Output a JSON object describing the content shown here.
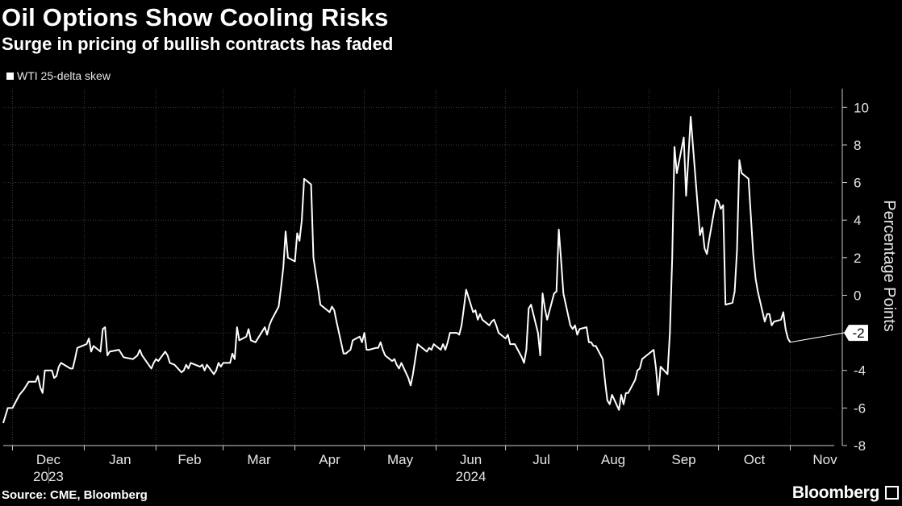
{
  "header": {
    "title": "Oil Options Show Cooling Risks",
    "subtitle": "Surge in pricing of bullish contracts has faded"
  },
  "legend": {
    "label": "WTI 25-delta skew"
  },
  "footer": {
    "source": "Source: CME, Bloomberg",
    "brand": "Bloomberg"
  },
  "colors": {
    "background": "#000000",
    "line": "#ffffff",
    "grid": "#3a3a3a"
  },
  "chart_data": {
    "type": "line",
    "title": "Oil Options Show Cooling Risks",
    "subtitle": "Surge in pricing of bullish contracts has faded",
    "ylabel": "Percentage Points",
    "xlabel": "",
    "ylim": [
      -8,
      11
    ],
    "y_ticks": [
      10,
      8,
      6,
      4,
      2,
      0,
      -2,
      -4,
      -6,
      -8
    ],
    "y_tick_labels": [
      "10",
      "8",
      "6",
      "4",
      "2",
      "0",
      "-2",
      "-4",
      "-6",
      "-8"
    ],
    "x_range": [
      "2023-11-27",
      "2024-11-20"
    ],
    "x_ticks": [
      {
        "date": "2023-12-01",
        "label": "Dec",
        "sublabel": "2023"
      },
      {
        "date": "2024-01-01",
        "label": "Jan"
      },
      {
        "date": "2024-02-01",
        "label": "Feb"
      },
      {
        "date": "2024-03-01",
        "label": "Mar"
      },
      {
        "date": "2024-04-01",
        "label": "Apr"
      },
      {
        "date": "2024-05-01",
        "label": "May"
      },
      {
        "date": "2024-06-01",
        "label": "Jun",
        "sublabel": "2024"
      },
      {
        "date": "2024-07-01",
        "label": "Jul"
      },
      {
        "date": "2024-08-01",
        "label": "Aug"
      },
      {
        "date": "2024-09-01",
        "label": "Sep"
      },
      {
        "date": "2024-10-01",
        "label": "Oct"
      },
      {
        "date": "2024-11-01",
        "label": "Nov"
      }
    ],
    "last_value_label": "-2",
    "grid": true,
    "legend_position": "top-left",
    "series": [
      {
        "name": "WTI 25-delta skew",
        "points": [
          [
            "2023-11-27",
            -6.8
          ],
          [
            "2023-11-29",
            -6.0
          ],
          [
            "2023-12-01",
            -6.0
          ],
          [
            "2023-12-04",
            -5.3
          ],
          [
            "2023-12-06",
            -5.0
          ],
          [
            "2023-12-08",
            -4.6
          ],
          [
            "2023-12-11",
            -4.6
          ],
          [
            "2023-12-12",
            -4.3
          ],
          [
            "2023-12-13",
            -4.9
          ],
          [
            "2023-12-14",
            -5.2
          ],
          [
            "2023-12-15",
            -4.0
          ],
          [
            "2023-12-18",
            -4.0
          ],
          [
            "2023-12-19",
            -4.4
          ],
          [
            "2023-12-20",
            -4.3
          ],
          [
            "2023-12-21",
            -3.8
          ],
          [
            "2023-12-22",
            -3.6
          ],
          [
            "2023-12-26",
            -3.9
          ],
          [
            "2023-12-27",
            -3.9
          ],
          [
            "2023-12-28",
            -3.4
          ],
          [
            "2023-12-29",
            -2.8
          ],
          [
            "2024-01-02",
            -2.6
          ],
          [
            "2024-01-03",
            -2.3
          ],
          [
            "2024-01-04",
            -3.0
          ],
          [
            "2024-01-05",
            -2.7
          ],
          [
            "2024-01-08",
            -3.0
          ],
          [
            "2024-01-09",
            -1.8
          ],
          [
            "2024-01-10",
            -1.7
          ],
          [
            "2024-01-11",
            -3.2
          ],
          [
            "2024-01-12",
            -3.0
          ],
          [
            "2024-01-16",
            -2.9
          ],
          [
            "2024-01-18",
            -3.3
          ],
          [
            "2024-01-22",
            -3.4
          ],
          [
            "2024-01-24",
            -3.2
          ],
          [
            "2024-01-25",
            -2.9
          ],
          [
            "2024-01-26",
            -3.2
          ],
          [
            "2024-01-30",
            -3.9
          ],
          [
            "2024-01-31",
            -3.6
          ],
          [
            "2024-02-01",
            -3.4
          ],
          [
            "2024-02-02",
            -3.5
          ],
          [
            "2024-02-05",
            -3.0
          ],
          [
            "2024-02-06",
            -3.2
          ],
          [
            "2024-02-07",
            -3.6
          ],
          [
            "2024-02-09",
            -3.7
          ],
          [
            "2024-02-12",
            -4.1
          ],
          [
            "2024-02-13",
            -4.0
          ],
          [
            "2024-02-14",
            -3.7
          ],
          [
            "2024-02-15",
            -3.9
          ],
          [
            "2024-02-16",
            -3.6
          ],
          [
            "2024-02-20",
            -3.8
          ],
          [
            "2024-02-21",
            -3.7
          ],
          [
            "2024-02-22",
            -4.0
          ],
          [
            "2024-02-23",
            -3.7
          ],
          [
            "2024-02-26",
            -4.2
          ],
          [
            "2024-02-27",
            -4.0
          ],
          [
            "2024-02-28",
            -3.6
          ],
          [
            "2024-02-29",
            -3.8
          ],
          [
            "2024-03-01",
            -3.6
          ],
          [
            "2024-03-04",
            -3.6
          ],
          [
            "2024-03-05",
            -3.1
          ],
          [
            "2024-03-06",
            -3.4
          ],
          [
            "2024-03-07",
            -1.7
          ],
          [
            "2024-03-08",
            -2.4
          ],
          [
            "2024-03-11",
            -2.2
          ],
          [
            "2024-03-12",
            -1.8
          ],
          [
            "2024-03-13",
            -2.4
          ],
          [
            "2024-03-15",
            -2.5
          ],
          [
            "2024-03-18",
            -1.9
          ],
          [
            "2024-03-19",
            -1.7
          ],
          [
            "2024-03-20",
            -2.1
          ],
          [
            "2024-03-21",
            -1.6
          ],
          [
            "2024-03-22",
            -1.3
          ],
          [
            "2024-03-25",
            -0.6
          ],
          [
            "2024-03-26",
            0.4
          ],
          [
            "2024-03-27",
            1.5
          ],
          [
            "2024-03-28",
            3.4
          ],
          [
            "2024-03-29",
            2.0
          ],
          [
            "2024-04-01",
            1.8
          ],
          [
            "2024-04-02",
            3.3
          ],
          [
            "2024-04-03",
            2.9
          ],
          [
            "2024-04-04",
            4.0
          ],
          [
            "2024-04-05",
            6.2
          ],
          [
            "2024-04-08",
            5.9
          ],
          [
            "2024-04-09",
            2.0
          ],
          [
            "2024-04-10",
            1.2
          ],
          [
            "2024-04-11",
            0.4
          ],
          [
            "2024-04-12",
            -0.5
          ],
          [
            "2024-04-15",
            -0.8
          ],
          [
            "2024-04-16",
            -0.9
          ],
          [
            "2024-04-17",
            -0.6
          ],
          [
            "2024-04-18",
            -0.8
          ],
          [
            "2024-04-19",
            -1.4
          ],
          [
            "2024-04-22",
            -3.1
          ],
          [
            "2024-04-23",
            -3.1
          ],
          [
            "2024-04-24",
            -3.0
          ],
          [
            "2024-04-25",
            -2.9
          ],
          [
            "2024-04-26",
            -2.4
          ],
          [
            "2024-04-29",
            -2.2
          ],
          [
            "2024-04-30",
            -2.5
          ],
          [
            "2024-05-01",
            -2.0
          ],
          [
            "2024-05-02",
            -2.9
          ],
          [
            "2024-05-03",
            -2.9
          ],
          [
            "2024-05-06",
            -2.8
          ],
          [
            "2024-05-07",
            -2.8
          ],
          [
            "2024-05-08",
            -2.5
          ],
          [
            "2024-05-09",
            -2.9
          ],
          [
            "2024-05-10",
            -3.2
          ],
          [
            "2024-05-13",
            -3.5
          ],
          [
            "2024-05-14",
            -3.4
          ],
          [
            "2024-05-15",
            -3.7
          ],
          [
            "2024-05-16",
            -3.9
          ],
          [
            "2024-05-17",
            -3.6
          ],
          [
            "2024-05-20",
            -4.4
          ],
          [
            "2024-05-21",
            -4.8
          ],
          [
            "2024-05-22",
            -4.2
          ],
          [
            "2024-05-23",
            -3.4
          ],
          [
            "2024-05-24",
            -2.6
          ],
          [
            "2024-05-28",
            -3.0
          ],
          [
            "2024-05-29",
            -2.8
          ],
          [
            "2024-05-30",
            -2.9
          ],
          [
            "2024-05-31",
            -2.6
          ],
          [
            "2024-06-03",
            -2.9
          ],
          [
            "2024-06-04",
            -2.6
          ],
          [
            "2024-06-05",
            -2.9
          ],
          [
            "2024-06-06",
            -2.5
          ],
          [
            "2024-06-07",
            -2.0
          ],
          [
            "2024-06-10",
            -2.0
          ],
          [
            "2024-06-11",
            -2.1
          ],
          [
            "2024-06-12",
            -1.6
          ],
          [
            "2024-06-13",
            -0.7
          ],
          [
            "2024-06-14",
            0.3
          ],
          [
            "2024-06-17",
            -0.9
          ],
          [
            "2024-06-18",
            -0.8
          ],
          [
            "2024-06-19",
            -1.3
          ],
          [
            "2024-06-20",
            -1.0
          ],
          [
            "2024-06-21",
            -1.3
          ],
          [
            "2024-06-24",
            -1.6
          ],
          [
            "2024-06-25",
            -1.4
          ],
          [
            "2024-06-26",
            -1.3
          ],
          [
            "2024-06-27",
            -1.6
          ],
          [
            "2024-06-28",
            -2.0
          ],
          [
            "2024-07-01",
            -2.3
          ],
          [
            "2024-07-02",
            -2.1
          ],
          [
            "2024-07-03",
            -2.6
          ],
          [
            "2024-07-05",
            -2.6
          ],
          [
            "2024-07-08",
            -3.3
          ],
          [
            "2024-07-09",
            -3.6
          ],
          [
            "2024-07-10",
            -2.9
          ],
          [
            "2024-07-11",
            -0.7
          ],
          [
            "2024-07-12",
            -0.5
          ],
          [
            "2024-07-15",
            -2.0
          ],
          [
            "2024-07-16",
            -3.2
          ],
          [
            "2024-07-17",
            0.1
          ],
          [
            "2024-07-18",
            -0.7
          ],
          [
            "2024-07-19",
            -1.3
          ],
          [
            "2024-07-22",
            0.1
          ],
          [
            "2024-07-23",
            0.2
          ],
          [
            "2024-07-24",
            3.5
          ],
          [
            "2024-07-25",
            1.9
          ],
          [
            "2024-07-26",
            0.1
          ],
          [
            "2024-07-29",
            -1.6
          ],
          [
            "2024-07-30",
            -1.8
          ],
          [
            "2024-07-31",
            -1.6
          ],
          [
            "2024-08-01",
            -2.1
          ],
          [
            "2024-08-02",
            -1.8
          ],
          [
            "2024-08-05",
            -1.7
          ],
          [
            "2024-08-06",
            -2.5
          ],
          [
            "2024-08-07",
            -2.5
          ],
          [
            "2024-08-08",
            -2.7
          ],
          [
            "2024-08-09",
            -2.7
          ],
          [
            "2024-08-12",
            -3.4
          ],
          [
            "2024-08-13",
            -4.6
          ],
          [
            "2024-08-14",
            -5.6
          ],
          [
            "2024-08-15",
            -5.8
          ],
          [
            "2024-08-16",
            -5.3
          ],
          [
            "2024-08-19",
            -6.1
          ],
          [
            "2024-08-20",
            -5.3
          ],
          [
            "2024-08-21",
            -5.8
          ],
          [
            "2024-08-22",
            -5.2
          ],
          [
            "2024-08-23",
            -5.2
          ],
          [
            "2024-08-26",
            -4.5
          ],
          [
            "2024-08-27",
            -4.0
          ],
          [
            "2024-08-28",
            -3.9
          ],
          [
            "2024-08-29",
            -3.4
          ],
          [
            "2024-08-30",
            -3.3
          ],
          [
            "2024-09-03",
            -2.9
          ],
          [
            "2024-09-04",
            -3.9
          ],
          [
            "2024-09-05",
            -5.3
          ],
          [
            "2024-09-06",
            -3.8
          ],
          [
            "2024-09-09",
            -4.2
          ],
          [
            "2024-09-10",
            -2.0
          ],
          [
            "2024-09-11",
            2.0
          ],
          [
            "2024-09-12",
            7.9
          ],
          [
            "2024-09-13",
            6.5
          ],
          [
            "2024-09-16",
            8.4
          ],
          [
            "2024-09-17",
            5.3
          ],
          [
            "2024-09-18",
            7.3
          ],
          [
            "2024-09-19",
            9.5
          ],
          [
            "2024-09-20",
            7.9
          ],
          [
            "2024-09-23",
            3.2
          ],
          [
            "2024-09-24",
            3.6
          ],
          [
            "2024-09-25",
            2.5
          ],
          [
            "2024-09-26",
            2.2
          ],
          [
            "2024-09-27",
            3.0
          ],
          [
            "2024-09-30",
            5.1
          ],
          [
            "2024-10-01",
            5.0
          ],
          [
            "2024-10-02",
            4.6
          ],
          [
            "2024-10-03",
            4.8
          ],
          [
            "2024-10-04",
            -0.5
          ],
          [
            "2024-10-07",
            -0.4
          ],
          [
            "2024-10-08",
            0.2
          ],
          [
            "2024-10-09",
            2.4
          ],
          [
            "2024-10-10",
            7.2
          ],
          [
            "2024-10-11",
            6.5
          ],
          [
            "2024-10-14",
            6.2
          ],
          [
            "2024-10-15",
            4.2
          ],
          [
            "2024-10-16",
            2.2
          ],
          [
            "2024-10-17",
            0.9
          ],
          [
            "2024-10-18",
            0.2
          ],
          [
            "2024-10-21",
            -1.4
          ],
          [
            "2024-10-22",
            -1.0
          ],
          [
            "2024-10-23",
            -1.0
          ],
          [
            "2024-10-24",
            -1.6
          ],
          [
            "2024-10-25",
            -1.4
          ],
          [
            "2024-10-28",
            -1.3
          ],
          [
            "2024-10-29",
            -0.9
          ],
          [
            "2024-10-30",
            -1.8
          ],
          [
            "2024-10-31",
            -2.3
          ],
          [
            "2024-11-01",
            -2.5
          ]
        ]
      }
    ]
  }
}
